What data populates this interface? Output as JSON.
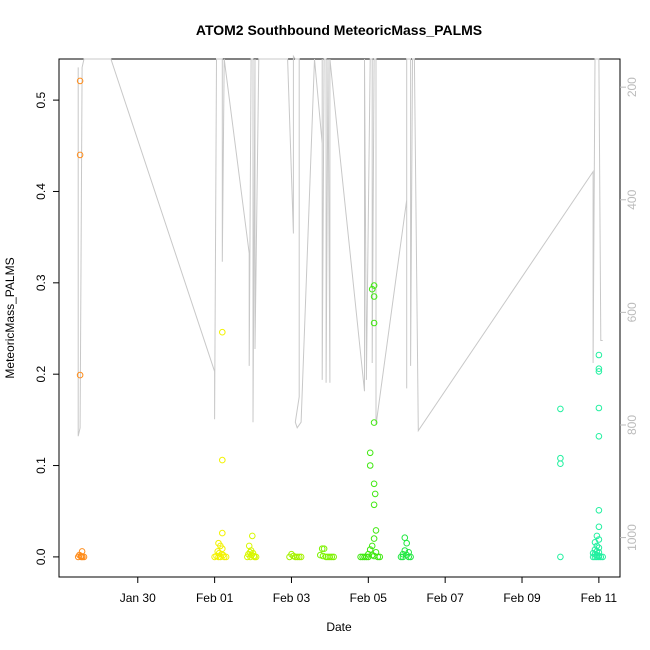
{
  "chart_data": {
    "type": "scatter",
    "title": "ATOM2 Southbound MeteoricMass_PALMS",
    "xlabel": "Date",
    "ylabel": "MeteoricMass_PALMS",
    "x_ticks": [
      "Jan 30",
      "Feb 01",
      "Feb 03",
      "Feb 05",
      "Feb 07",
      "Feb 09",
      "Feb 11"
    ],
    "x_tick_days": [
      30,
      32,
      34,
      36,
      38,
      40,
      42
    ],
    "xlim": [
      27.95,
      42.55
    ],
    "y_ticks": [
      0.0,
      0.1,
      0.2,
      0.3,
      0.4,
      0.5
    ],
    "y_tick_labels": [
      "0.0",
      "0.1",
      "0.2",
      "0.3",
      "0.4",
      "0.5"
    ],
    "ylim": [
      -0.022,
      0.545
    ],
    "right_axis": {
      "reversed": true,
      "ticks": [
        200,
        400,
        600,
        800,
        1000
      ],
      "tick_labels": [
        "200",
        "400",
        "600",
        "800",
        "1000"
      ],
      "lim": [
        150,
        1070
      ],
      "color": "#bbbbbb"
    },
    "grid": false,
    "series": [
      {
        "color": "#ff8c1a",
        "points": [
          [
            28.5,
            0.521
          ],
          [
            28.5,
            0.44
          ],
          [
            28.5,
            0.199
          ],
          [
            28.55,
            0.006
          ],
          [
            28.48,
            0.002
          ],
          [
            28.52,
            0.001
          ],
          [
            28.56,
            0.0
          ],
          [
            28.6,
            0.0
          ],
          [
            28.45,
            0.0
          ],
          [
            28.53,
            0.0
          ]
        ]
      },
      {
        "color": "#f2f200",
        "points": [
          [
            32.2,
            0.246
          ],
          [
            32.2,
            0.106
          ],
          [
            32.2,
            0.026
          ],
          [
            32.1,
            0.015
          ],
          [
            32.15,
            0.012
          ],
          [
            32.2,
            0.009
          ],
          [
            32.08,
            0.006
          ],
          [
            32.12,
            0.004
          ],
          [
            32.18,
            0.003
          ],
          [
            32.22,
            0.002
          ],
          [
            32.05,
            0.001
          ],
          [
            32.25,
            0.0
          ],
          [
            32.0,
            0.0
          ],
          [
            32.1,
            0.0
          ],
          [
            32.3,
            0.0
          ],
          [
            32.15,
            0.0
          ]
        ]
      },
      {
        "color": "#d8f700",
        "points": [
          [
            32.98,
            0.023
          ],
          [
            32.9,
            0.012
          ],
          [
            32.95,
            0.007
          ],
          [
            32.92,
            0.005
          ],
          [
            33.0,
            0.004
          ],
          [
            32.88,
            0.003
          ],
          [
            32.96,
            0.002
          ],
          [
            33.02,
            0.001
          ],
          [
            32.85,
            0.0
          ],
          [
            32.93,
            0.0
          ],
          [
            33.04,
            0.0
          ],
          [
            33.08,
            0.0
          ]
        ]
      },
      {
        "color": "#a5f200",
        "points": [
          [
            34.0,
            0.003
          ],
          [
            34.05,
            0.001
          ],
          [
            33.95,
            0.0
          ],
          [
            34.1,
            0.0
          ],
          [
            34.15,
            0.0
          ],
          [
            34.2,
            0.0
          ],
          [
            34.25,
            0.0
          ]
        ]
      },
      {
        "color": "#7df200",
        "points": [
          [
            34.8,
            0.009
          ],
          [
            34.85,
            0.009
          ],
          [
            34.75,
            0.002
          ],
          [
            34.82,
            0.001
          ],
          [
            34.9,
            0.0
          ],
          [
            34.95,
            0.0
          ],
          [
            35.0,
            0.0
          ],
          [
            35.05,
            0.0
          ],
          [
            35.1,
            0.0
          ]
        ]
      },
      {
        "color": "#40e810",
        "points": [
          [
            36.15,
            0.297
          ],
          [
            36.1,
            0.293
          ],
          [
            36.15,
            0.285
          ],
          [
            36.15,
            0.256
          ],
          [
            36.15,
            0.147
          ],
          [
            36.05,
            0.114
          ],
          [
            36.05,
            0.1
          ],
          [
            36.15,
            0.08
          ],
          [
            36.18,
            0.069
          ],
          [
            36.15,
            0.057
          ],
          [
            36.2,
            0.029
          ],
          [
            36.15,
            0.02
          ],
          [
            36.1,
            0.012
          ],
          [
            36.05,
            0.008
          ],
          [
            36.2,
            0.005
          ],
          [
            36.0,
            0.003
          ],
          [
            36.1,
            0.002
          ],
          [
            36.15,
            0.001
          ],
          [
            35.8,
            0.0
          ],
          [
            35.85,
            0.0
          ],
          [
            35.9,
            0.0
          ],
          [
            35.95,
            0.0
          ],
          [
            36.0,
            0.0
          ],
          [
            36.25,
            0.0
          ],
          [
            36.3,
            0.0
          ]
        ]
      },
      {
        "color": "#20e840",
        "points": [
          [
            36.95,
            0.021
          ],
          [
            37.0,
            0.015
          ],
          [
            36.95,
            0.007
          ],
          [
            37.05,
            0.005
          ],
          [
            36.9,
            0.003
          ],
          [
            37.0,
            0.002
          ],
          [
            36.85,
            0.0
          ],
          [
            36.9,
            0.0
          ],
          [
            37.05,
            0.0
          ],
          [
            37.1,
            0.0
          ]
        ]
      },
      {
        "color": "#22f0a0",
        "points": [
          [
            41.0,
            0.162
          ],
          [
            41.0,
            0.108
          ],
          [
            41.0,
            0.102
          ],
          [
            41.0,
            0.0
          ],
          [
            42.0,
            0.221
          ],
          [
            42.0,
            0.206
          ],
          [
            42.0,
            0.203
          ],
          [
            42.0,
            0.163
          ],
          [
            42.0,
            0.132
          ],
          [
            42.0,
            0.051
          ],
          [
            42.0,
            0.033
          ],
          [
            41.95,
            0.023
          ],
          [
            42.0,
            0.019
          ],
          [
            41.9,
            0.016
          ],
          [
            41.95,
            0.012
          ],
          [
            42.0,
            0.01
          ],
          [
            41.9,
            0.008
          ],
          [
            41.95,
            0.006
          ],
          [
            42.0,
            0.005
          ],
          [
            41.85,
            0.004
          ],
          [
            41.9,
            0.003
          ],
          [
            41.95,
            0.002
          ],
          [
            42.0,
            0.001
          ],
          [
            41.85,
            0.0
          ],
          [
            41.9,
            0.0
          ],
          [
            41.95,
            0.0
          ],
          [
            42.0,
            0.0
          ],
          [
            42.05,
            0.0
          ],
          [
            42.1,
            0.0
          ]
        ]
      }
    ],
    "secondary_series": {
      "axis": "right",
      "color": "#c8c8c8",
      "points": [
        [
          28.45,
          165
        ],
        [
          28.45,
          820
        ],
        [
          28.5,
          805
        ],
        [
          28.55,
          165
        ],
        [
          28.6,
          150
        ],
        [
          29.3,
          150
        ],
        [
          32.0,
          705
        ],
        [
          32.0,
          790
        ],
        [
          32.05,
          150
        ],
        [
          32.1,
          150
        ],
        [
          32.15,
          150
        ],
        [
          32.2,
          150
        ],
        [
          32.2,
          510
        ],
        [
          32.25,
          150
        ],
        [
          32.9,
          495
        ],
        [
          32.9,
          695
        ],
        [
          32.95,
          150
        ],
        [
          33.0,
          150
        ],
        [
          33.0,
          795
        ],
        [
          33.05,
          150
        ],
        [
          33.05,
          665
        ],
        [
          33.15,
          150
        ],
        [
          33.9,
          150
        ],
        [
          34.05,
          460
        ],
        [
          34.05,
          145
        ],
        [
          34.1,
          150
        ],
        [
          34.2,
          150
        ],
        [
          34.2,
          750
        ],
        [
          34.1,
          795
        ],
        [
          34.15,
          805
        ],
        [
          34.25,
          795
        ],
        [
          34.6,
          150
        ],
        [
          34.8,
          300
        ],
        [
          34.8,
          150
        ],
        [
          34.8,
          720
        ],
        [
          34.85,
          150
        ],
        [
          34.9,
          150
        ],
        [
          34.9,
          725
        ],
        [
          34.95,
          150
        ],
        [
          35.0,
          725
        ],
        [
          35.0,
          150
        ],
        [
          35.9,
          740
        ],
        [
          35.9,
          150
        ],
        [
          35.95,
          700
        ],
        [
          35.95,
          720
        ],
        [
          36.05,
          150
        ],
        [
          36.1,
          150
        ],
        [
          36.1,
          690
        ],
        [
          36.15,
          150
        ],
        [
          36.2,
          150
        ],
        [
          36.2,
          800
        ],
        [
          37.0,
          400
        ],
        [
          37.0,
          735
        ],
        [
          37.0,
          150
        ],
        [
          37.05,
          150
        ],
        [
          37.1,
          150
        ],
        [
          37.1,
          695
        ],
        [
          37.15,
          150
        ],
        [
          37.2,
          150
        ],
        [
          37.3,
          810
        ],
        [
          41.85,
          350
        ],
        [
          41.85,
          690
        ],
        [
          41.9,
          150
        ],
        [
          41.95,
          150
        ],
        [
          42.0,
          150
        ],
        [
          42.05,
          650
        ],
        [
          42.1,
          650
        ]
      ]
    }
  }
}
